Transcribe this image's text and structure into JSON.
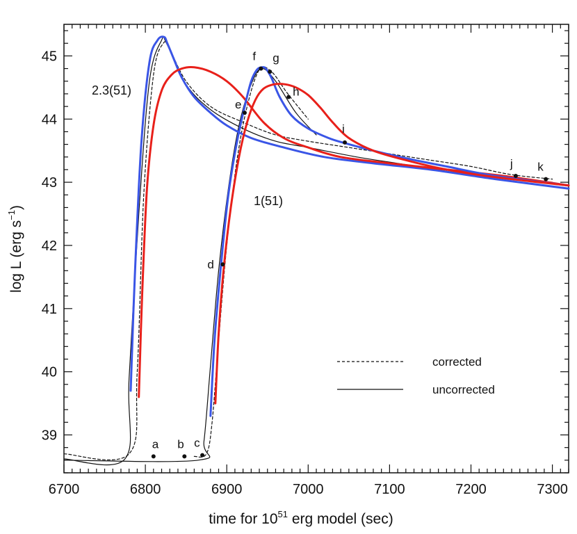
{
  "chart_data": {
    "type": "line",
    "xlabel": "time for 10^51 erg model (sec)",
    "xlabel_parts": {
      "prefix": "time for 10",
      "sup": "51",
      "suffix": " erg model (sec)"
    },
    "ylabel": "log L (erg s^-1)",
    "ylabel_parts": {
      "prefix": "log L (erg s",
      "sup": "−1",
      "suffix": ")"
    },
    "xlim": [
      6700,
      7320
    ],
    "ylim": [
      38.4,
      45.5
    ],
    "xticks": [
      "6700",
      "6800",
      "6900",
      "7000",
      "7100",
      "7200",
      "7300"
    ],
    "yticks": [
      "39",
      "40",
      "41",
      "42",
      "43",
      "44",
      "45"
    ],
    "legend": {
      "placement": "lower-right",
      "entries": [
        {
          "label": "corrected",
          "style": "dashed"
        },
        {
          "label": "uncorrected",
          "style": "solid"
        }
      ]
    },
    "annotations": [
      {
        "text": "2.3(51)",
        "x": 6665,
        "y": 44.4
      },
      {
        "text": "1(51)",
        "x": 6980,
        "y": 42.8
      }
    ],
    "points": [
      {
        "label": "a",
        "x": 6810,
        "y": 38.66
      },
      {
        "label": "b",
        "x": 6848,
        "y": 38.66
      },
      {
        "label": "c",
        "x": 6870,
        "y": 38.68
      },
      {
        "label": "d",
        "x": 6895,
        "y": 41.7
      },
      {
        "label": "e",
        "x": 6922,
        "y": 44.1
      },
      {
        "label": "f",
        "x": 6942,
        "y": 44.8
      },
      {
        "label": "g",
        "x": 6953,
        "y": 44.75
      },
      {
        "label": "h",
        "x": 6976,
        "y": 44.35
      },
      {
        "label": "i",
        "x": 7045,
        "y": 43.63
      },
      {
        "label": "j",
        "x": 7255,
        "y": 43.1
      },
      {
        "label": "k",
        "x": 7292,
        "y": 43.05
      }
    ],
    "series": [
      {
        "name": "2.3(51) blue",
        "color": "#3a55e6",
        "width": 3,
        "x": [
          6782,
          6787,
          6795,
          6805,
          6815,
          6823,
          6827,
          6835,
          6845,
          6860,
          6880,
          6900,
          6930,
          6970,
          7020,
          7080,
          7150,
          7230,
          7320
        ],
        "y": [
          39.7,
          41.5,
          43.6,
          44.9,
          45.25,
          45.3,
          45.2,
          44.95,
          44.65,
          44.35,
          44.1,
          43.9,
          43.7,
          43.55,
          43.4,
          43.3,
          43.2,
          43.05,
          42.9
        ]
      },
      {
        "name": "2.3(51) red",
        "color": "#e8201a",
        "width": 3,
        "x": [
          6792,
          6796,
          6802,
          6810,
          6820,
          6832,
          6845,
          6860,
          6880,
          6900,
          6920,
          6945,
          6970,
          7000,
          7040,
          7100,
          7170,
          7240,
          7320
        ],
        "y": [
          39.6,
          41.2,
          42.9,
          43.9,
          44.45,
          44.7,
          44.8,
          44.82,
          44.75,
          44.6,
          44.35,
          43.95,
          43.7,
          43.55,
          43.4,
          43.3,
          43.2,
          43.1,
          42.95
        ]
      },
      {
        "name": "1(51) blue",
        "color": "#3a55e6",
        "width": 3,
        "x": [
          6880,
          6885,
          6893,
          6902,
          6912,
          6922,
          6930,
          6937,
          6943,
          6948,
          6955,
          6965,
          6980,
          7000,
          7025,
          7045,
          7080,
          7120,
          7170,
          7230,
          7320
        ],
        "y": [
          39.3,
          40.5,
          41.7,
          42.8,
          43.6,
          44.2,
          44.6,
          44.78,
          44.82,
          44.8,
          44.65,
          44.35,
          44.05,
          43.85,
          43.7,
          43.62,
          43.5,
          43.38,
          43.25,
          43.1,
          42.95
        ]
      },
      {
        "name": "1(51) red",
        "color": "#e8201a",
        "width": 3,
        "x": [
          6886,
          6890,
          6896,
          6905,
          6915,
          6925,
          6935,
          6945,
          6958,
          6972,
          6985,
          7000,
          7015,
          7030,
          7050,
          7080,
          7120,
          7170,
          7230,
          7320
        ],
        "y": [
          39.5,
          40.6,
          41.6,
          42.6,
          43.4,
          43.95,
          44.3,
          44.48,
          44.55,
          44.55,
          44.5,
          44.38,
          44.18,
          43.95,
          43.7,
          43.5,
          43.35,
          43.2,
          43.08,
          42.95
        ]
      },
      {
        "name": "corrected (dashed)",
        "color": "#111111",
        "width": 1.2,
        "dash": "4,3",
        "x": [
          6700,
          6780,
          6790,
          6798,
          6810,
          6822,
          6830,
          6850,
          6880,
          6920,
          6960,
          7000,
          7050,
          7100,
          7150,
          7200,
          7250,
          7300
        ],
        "y": [
          38.7,
          38.7,
          40.0,
          42.8,
          44.7,
          45.2,
          45.1,
          44.6,
          44.2,
          43.95,
          43.75,
          43.65,
          43.55,
          43.45,
          43.35,
          43.25,
          43.12,
          43.05
        ]
      },
      {
        "name": "uncorrected (solid)",
        "color": "#111111",
        "width": 1.2,
        "x": [
          6700,
          6775,
          6780,
          6792,
          6805,
          6820,
          6826,
          6850,
          6880,
          6920,
          6960,
          7000,
          7060,
          7120,
          7200,
          7300
        ],
        "y": [
          38.62,
          38.62,
          39.9,
          42.5,
          44.6,
          45.25,
          45.2,
          44.55,
          44.15,
          43.85,
          43.65,
          43.55,
          43.4,
          43.28,
          43.12,
          43.0
        ]
      },
      {
        "name": "1(51) corrected (dashed)",
        "color": "#111111",
        "width": 1.2,
        "dash": "4,3",
        "x": [
          6860,
          6875,
          6882,
          6890,
          6900,
          6912,
          6925,
          6940,
          6955,
          6975,
          7000
        ],
        "y": [
          38.66,
          38.7,
          39.2,
          40.5,
          42.0,
          43.3,
          44.2,
          44.78,
          44.75,
          44.4,
          44.0
        ]
      },
      {
        "name": "1(51) uncorrected (solid)",
        "color": "#111111",
        "width": 1.2,
        "x": [
          6700,
          6865,
          6872,
          6880,
          6890,
          6902,
          6915,
          6930,
          6943,
          6960,
          6985,
          7010
        ],
        "y": [
          38.6,
          38.6,
          38.9,
          40.1,
          41.6,
          42.9,
          43.9,
          44.55,
          44.8,
          44.6,
          44.1,
          43.75
        ]
      }
    ]
  }
}
